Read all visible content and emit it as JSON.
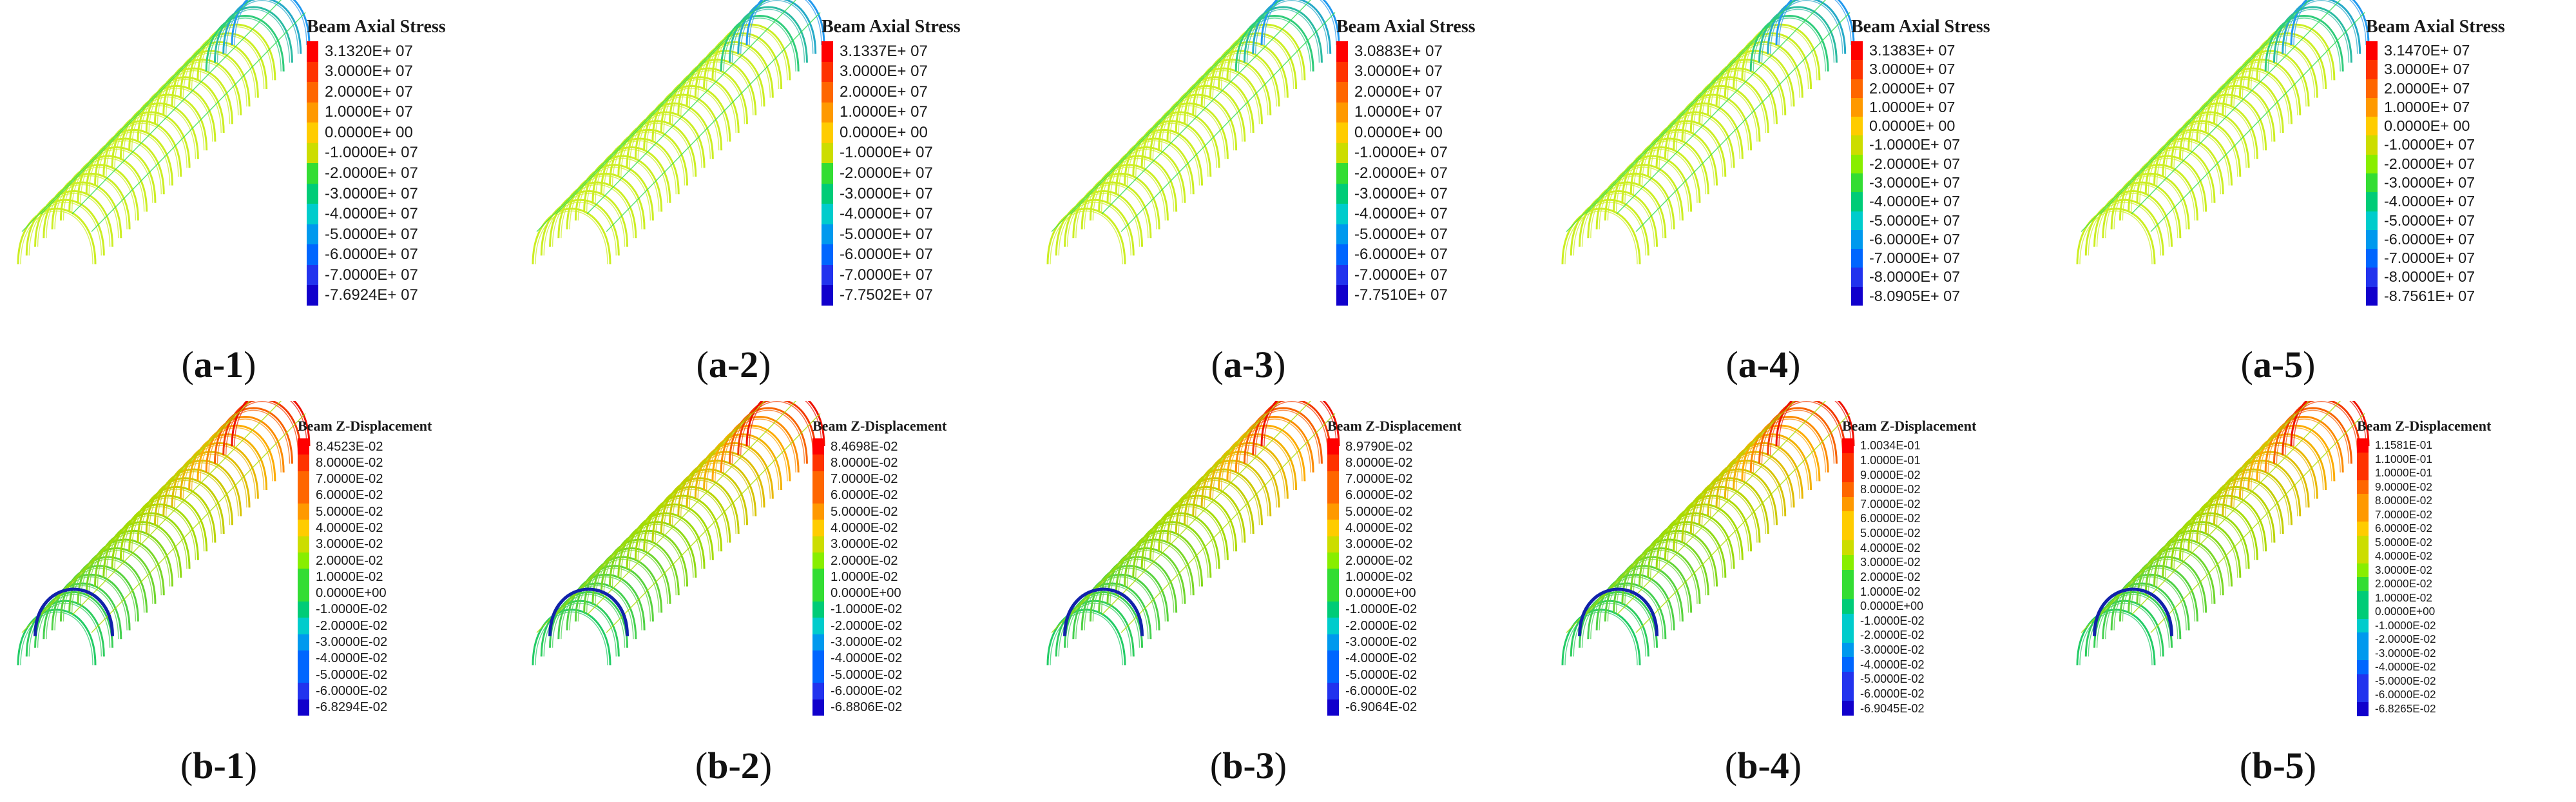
{
  "panels": [
    {
      "id": "a-1",
      "caption_id": "a-1",
      "legend_title": "Beam Axial Stress",
      "mode": "stress",
      "ribs": 26,
      "ticks": [
        "3.1320E+ 07",
        "3.0000E+ 07",
        "2.0000E+ 07",
        "1.0000E+ 07",
        "0.0000E+ 00",
        "-1.0000E+ 07",
        "-2.0000E+ 07",
        "-3.0000E+ 07",
        "-4.0000E+ 07",
        "-5.0000E+ 07",
        "-6.0000E+ 07",
        "-7.0000E+ 07",
        "-7.6924E+ 07"
      ]
    },
    {
      "id": "a-2",
      "caption_id": "a-2",
      "legend_title": "Beam Axial Stress",
      "mode": "stress",
      "ribs": 26,
      "ticks": [
        "3.1337E+ 07",
        "3.0000E+ 07",
        "2.0000E+ 07",
        "1.0000E+ 07",
        "0.0000E+ 00",
        "-1.0000E+ 07",
        "-2.0000E+ 07",
        "-3.0000E+ 07",
        "-4.0000E+ 07",
        "-5.0000E+ 07",
        "-6.0000E+ 07",
        "-7.0000E+ 07",
        "-7.7502E+ 07"
      ]
    },
    {
      "id": "a-3",
      "caption_id": "a-3",
      "legend_title": "Beam Axial Stress",
      "mode": "stress",
      "ribs": 26,
      "ticks": [
        "3.0883E+ 07",
        "3.0000E+ 07",
        "2.0000E+ 07",
        "1.0000E+ 07",
        "0.0000E+ 00",
        "-1.0000E+ 07",
        "-2.0000E+ 07",
        "-3.0000E+ 07",
        "-4.0000E+ 07",
        "-5.0000E+ 07",
        "-6.0000E+ 07",
        "-7.0000E+ 07",
        "-7.7510E+ 07"
      ]
    },
    {
      "id": "a-4",
      "caption_id": "a-4",
      "legend_title": "Beam Axial Stress",
      "mode": "stress",
      "ribs": 26,
      "ticks": [
        "3.1383E+ 07",
        "3.0000E+ 07",
        "2.0000E+ 07",
        "1.0000E+ 07",
        "0.0000E+ 00",
        "-1.0000E+ 07",
        "-2.0000E+ 07",
        "-3.0000E+ 07",
        "-4.0000E+ 07",
        "-5.0000E+ 07",
        "-6.0000E+ 07",
        "-7.0000E+ 07",
        "-8.0000E+ 07",
        "-8.0905E+ 07"
      ]
    },
    {
      "id": "a-5",
      "caption_id": "a-5",
      "legend_title": "Beam Axial Stress",
      "mode": "stress",
      "ribs": 26,
      "ticks": [
        "3.1470E+ 07",
        "3.0000E+ 07",
        "2.0000E+ 07",
        "1.0000E+ 07",
        "0.0000E+ 00",
        "-1.0000E+ 07",
        "-2.0000E+ 07",
        "-3.0000E+ 07",
        "-4.0000E+ 07",
        "-5.0000E+ 07",
        "-6.0000E+ 07",
        "-7.0000E+ 07",
        "-8.0000E+ 07",
        "-8.7561E+ 07"
      ]
    },
    {
      "id": "b-1",
      "caption_id": "b-1",
      "legend_title": "Beam Z-Displacement",
      "mode": "disp",
      "ribs": 26,
      "ticks": [
        "8.4523E-02",
        "8.0000E-02",
        "7.0000E-02",
        "6.0000E-02",
        "5.0000E-02",
        "4.0000E-02",
        "3.0000E-02",
        "2.0000E-02",
        "1.0000E-02",
        "0.0000E+00",
        "-1.0000E-02",
        "-2.0000E-02",
        "-3.0000E-02",
        "-4.0000E-02",
        "-5.0000E-02",
        "-6.0000E-02",
        "-6.8294E-02"
      ]
    },
    {
      "id": "b-2",
      "caption_id": "b-2",
      "legend_title": "Beam Z-Displacement",
      "mode": "disp",
      "ribs": 26,
      "ticks": [
        "8.4698E-02",
        "8.0000E-02",
        "7.0000E-02",
        "6.0000E-02",
        "5.0000E-02",
        "4.0000E-02",
        "3.0000E-02",
        "2.0000E-02",
        "1.0000E-02",
        "0.0000E+00",
        "-1.0000E-02",
        "-2.0000E-02",
        "-3.0000E-02",
        "-4.0000E-02",
        "-5.0000E-02",
        "-6.0000E-02",
        "-6.8806E-02"
      ]
    },
    {
      "id": "b-3",
      "caption_id": "b-3",
      "legend_title": "Beam Z-Displacement",
      "mode": "disp",
      "ribs": 26,
      "ticks": [
        "8.9790E-02",
        "8.0000E-02",
        "7.0000E-02",
        "6.0000E-02",
        "5.0000E-02",
        "4.0000E-02",
        "3.0000E-02",
        "2.0000E-02",
        "1.0000E-02",
        "0.0000E+00",
        "-1.0000E-02",
        "-2.0000E-02",
        "-3.0000E-02",
        "-4.0000E-02",
        "-5.0000E-02",
        "-6.0000E-02",
        "-6.9064E-02"
      ]
    },
    {
      "id": "b-4",
      "caption_id": "b-4",
      "legend_title": "Beam Z-Displacement",
      "mode": "disp",
      "ribs": 26,
      "ticks": [
        "1.0034E-01",
        "1.0000E-01",
        "9.0000E-02",
        "8.0000E-02",
        "7.0000E-02",
        "6.0000E-02",
        "5.0000E-02",
        "4.0000E-02",
        "3.0000E-02",
        "2.0000E-02",
        "1.0000E-02",
        "0.0000E+00",
        "-1.0000E-02",
        "-2.0000E-02",
        "-3.0000E-02",
        "-4.0000E-02",
        "-5.0000E-02",
        "-6.0000E-02",
        "-6.9045E-02"
      ]
    },
    {
      "id": "b-5",
      "caption_id": "b-5",
      "legend_title": "Beam Z-Displacement",
      "mode": "disp",
      "ribs": 26,
      "ticks": [
        "1.1581E-01",
        "1.1000E-01",
        "1.0000E-01",
        "9.0000E-02",
        "8.0000E-02",
        "7.0000E-02",
        "6.0000E-02",
        "5.0000E-02",
        "4.0000E-02",
        "3.0000E-02",
        "2.0000E-02",
        "1.0000E-02",
        "0.0000E+00",
        "-1.0000E-02",
        "-2.0000E-02",
        "-3.0000E-02",
        "-4.0000E-02",
        "-5.0000E-02",
        "-6.0000E-02",
        "-6.8265E-02"
      ]
    }
  ],
  "colors": {
    "contour_scale": [
      "#ff0000",
      "#ff3300",
      "#ff6600",
      "#ff9900",
      "#ffcc00",
      "#ccdd00",
      "#88ee00",
      "#33dd33",
      "#00cc77",
      "#00cccc",
      "#0099ee",
      "#0066ff",
      "#2233ee",
      "#1100cc"
    ],
    "stress_main": "#ccee22",
    "stress_mid": "#33dd55",
    "stress_crown": "#2299ee",
    "disp_hot": "#ee1100",
    "disp_warm": "#ffaa00",
    "disp_mid": "#aadd00",
    "disp_cool": "#22cc66",
    "disp_min": "#1122aa"
  }
}
